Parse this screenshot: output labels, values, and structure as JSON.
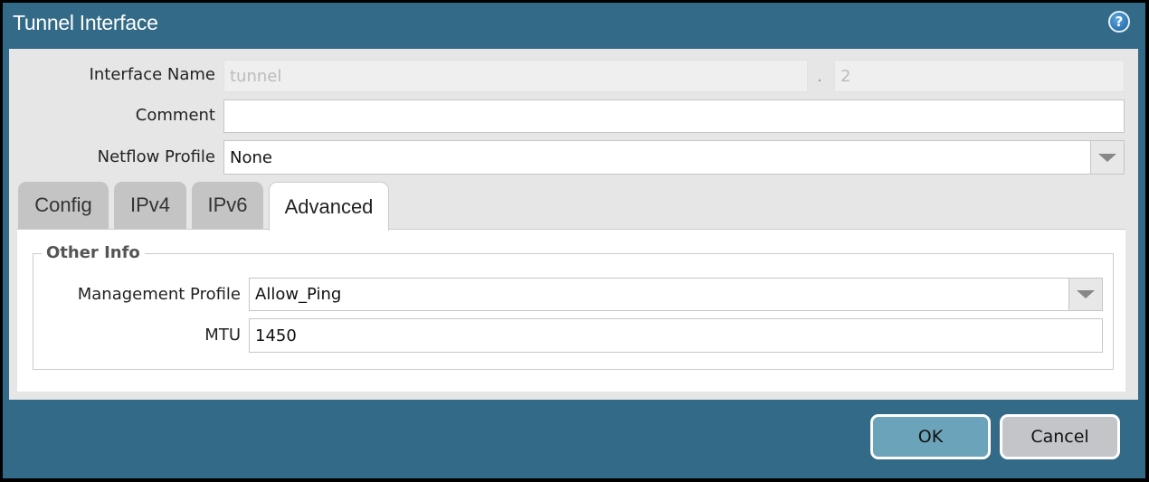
{
  "dialog": {
    "title": "Tunnel Interface",
    "help_icon": "?"
  },
  "form": {
    "interface_name": {
      "label": "Interface Name",
      "value": "tunnel",
      "separator": ".",
      "suffix": "2"
    },
    "comment": {
      "label": "Comment",
      "value": ""
    },
    "netflow_profile": {
      "label": "Netflow Profile",
      "value": "None"
    }
  },
  "tabs": [
    {
      "label": "Config"
    },
    {
      "label": "IPv4"
    },
    {
      "label": "IPv6"
    },
    {
      "label": "Advanced",
      "active": true
    }
  ],
  "advanced": {
    "section_title": "Other Info",
    "management_profile": {
      "label": "Management Profile",
      "value": "Allow_Ping"
    },
    "mtu": {
      "label": "MTU",
      "value": "1450"
    }
  },
  "buttons": {
    "ok": "OK",
    "cancel": "Cancel"
  },
  "colors": {
    "titlebar": "#326a87",
    "ok": "#6ba3ba",
    "cancel": "#c3c5c9"
  }
}
